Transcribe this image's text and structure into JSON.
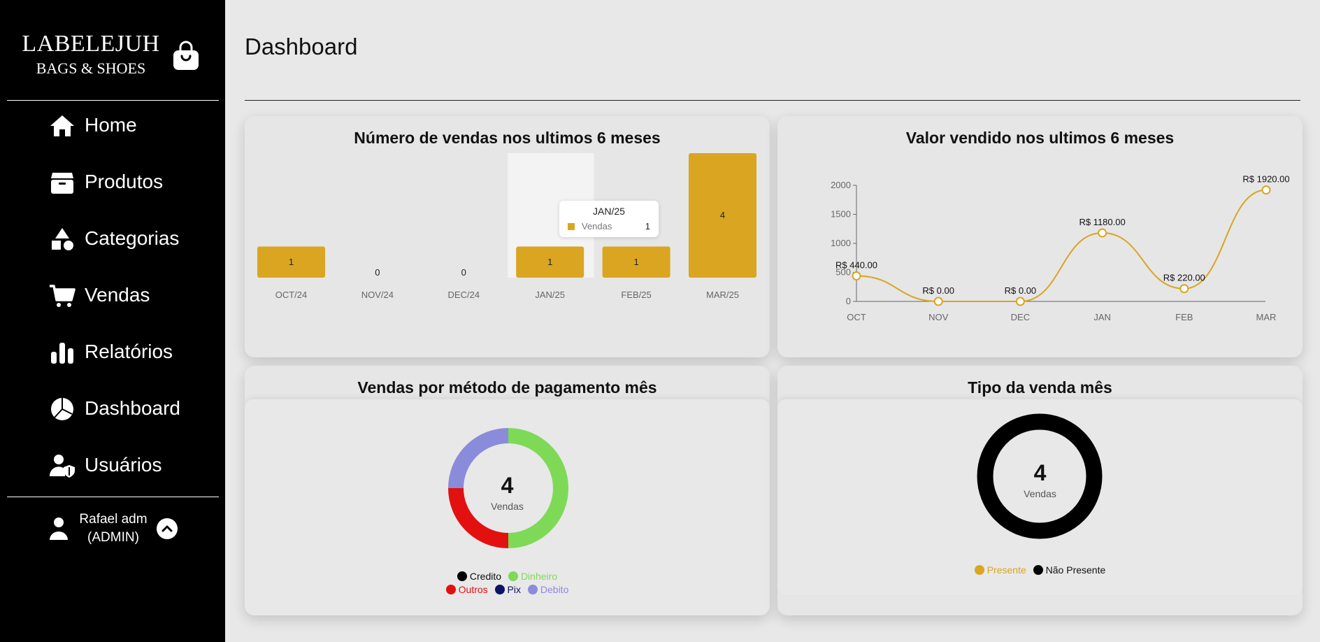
{
  "brand": {
    "line1": "LABELEJUH",
    "line2": "BAGS & SHOES",
    "icon": "shopping-bag-icon"
  },
  "sidebar": {
    "items": [
      {
        "label": "Home",
        "icon": "home-icon"
      },
      {
        "label": "Produtos",
        "icon": "box-icon"
      },
      {
        "label": "Categorias",
        "icon": "shapes-icon"
      },
      {
        "label": "Vendas",
        "icon": "cart-icon"
      },
      {
        "label": "Relatórios",
        "icon": "bar-chart-icon"
      },
      {
        "label": "Dashboard",
        "icon": "pie-chart-icon"
      },
      {
        "label": "Usuários",
        "icon": "user-shield-icon"
      }
    ],
    "user": {
      "name": "Rafael adm",
      "role": "(ADMIN)"
    }
  },
  "page": {
    "title": "Dashboard"
  },
  "colors": {
    "accent": "#DAA520",
    "sidebar": "#000000",
    "background": "#E8E8E8"
  },
  "cards": {
    "sales_count": {
      "title": "Número de vendas nos ultimos 6 meses"
    },
    "sales_value": {
      "title": "Valor vendido nos ultimos 6 meses"
    },
    "payment": {
      "title": "Vendas por método de pagamento mês",
      "total": "4",
      "total_label": "Vendas"
    },
    "sale_type": {
      "title": "Tipo da venda mês",
      "total": "4",
      "total_label": "Vendas"
    }
  },
  "chart_data": [
    {
      "type": "bar",
      "title": "Número de vendas nos ultimos 6 meses",
      "categories": [
        "OCT/24",
        "NOV/24",
        "DEC/24",
        "JAN/25",
        "FEB/25",
        "MAR/25"
      ],
      "series": [
        {
          "name": "Vendas",
          "values": [
            1,
            0,
            0,
            1,
            1,
            4
          ]
        }
      ],
      "ylim": [
        0,
        4
      ],
      "grid": false,
      "tooltip": {
        "category": "JAN/25",
        "series": "Vendas",
        "value": "1"
      },
      "color": "#DAA520"
    },
    {
      "type": "line",
      "title": "Valor vendido nos ultimos 6 meses",
      "categories": [
        "OCT",
        "NOV",
        "DEC",
        "JAN",
        "FEB",
        "MAR"
      ],
      "values": [
        440,
        0,
        0,
        1180,
        220,
        1920
      ],
      "data_labels": [
        "R$ 440.00",
        "R$ 0.00",
        "R$ 0.00",
        "R$ 1180.00",
        "R$ 220.00",
        "R$ 1920.00"
      ],
      "yticks": [
        0,
        500,
        1000,
        1500,
        2000
      ],
      "ylim": [
        0,
        2000
      ],
      "grid": false,
      "color": "#DAA520"
    },
    {
      "type": "pie",
      "title": "Vendas por método de pagamento mês",
      "center_value": "4",
      "center_label": "Vendas",
      "slices": [
        {
          "label": "Credito",
          "value": 0,
          "color": "#000000"
        },
        {
          "label": "Dinheiro",
          "value": 2,
          "color": "#7ED957"
        },
        {
          "label": "Outros",
          "value": 1,
          "color": "#E31010"
        },
        {
          "label": "Pix",
          "value": 0,
          "color": "#0D1466"
        },
        {
          "label": "Debito",
          "value": 1,
          "color": "#8B8BDB"
        }
      ],
      "legend": "bottom"
    },
    {
      "type": "pie",
      "title": "Tipo da venda mês",
      "center_value": "4",
      "center_label": "Vendas",
      "slices": [
        {
          "label": "Presente",
          "value": 0,
          "color": "#DAA520"
        },
        {
          "label": "Não Presente",
          "value": 4,
          "color": "#000000"
        }
      ],
      "legend": "bottom"
    }
  ]
}
